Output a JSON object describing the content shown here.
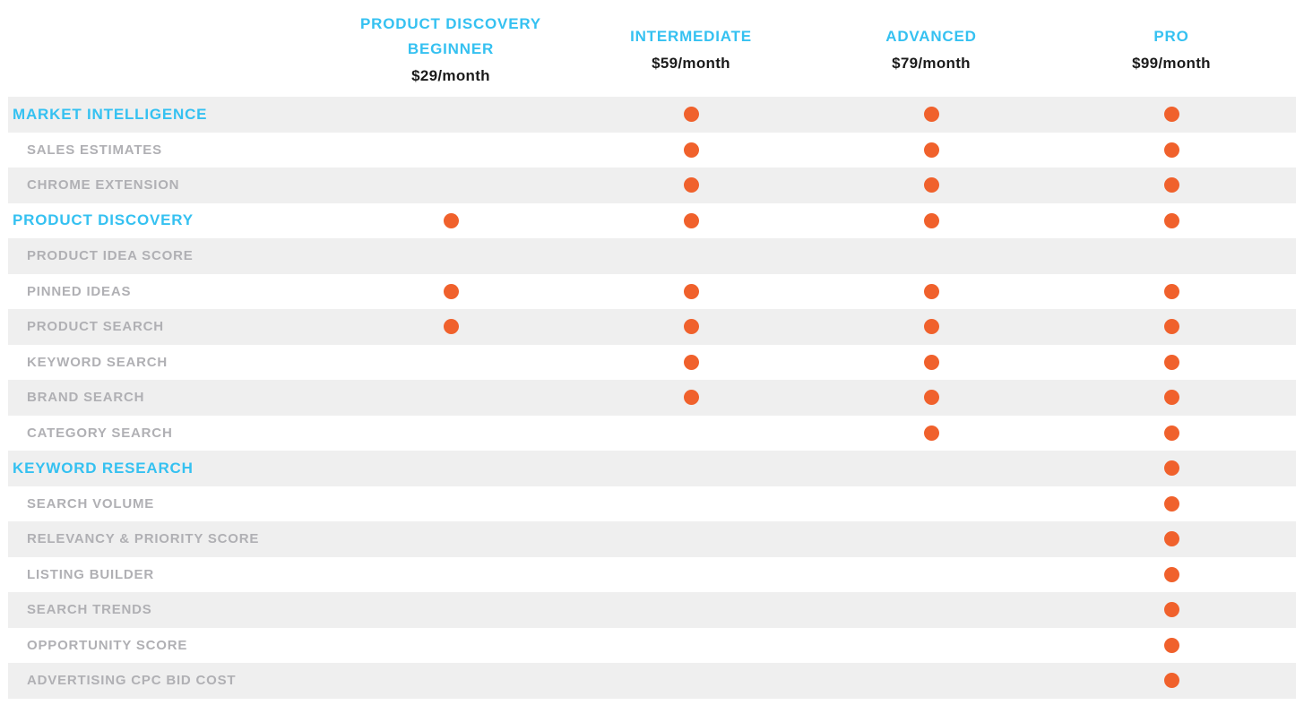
{
  "colors": {
    "plan_blue": "#35C1F1",
    "dot_orange": "#F0612C",
    "row_stripe": "#EFEFEF",
    "feature_gray": "#B0B0B4",
    "price_black": "#1B1B1B"
  },
  "plans": [
    {
      "name": "PRODUCT DISCOVERY BEGINNER",
      "price": "$29/month"
    },
    {
      "name": "INTERMEDIATE",
      "price": "$59/month"
    },
    {
      "name": "ADVANCED",
      "price": "$79/month"
    },
    {
      "name": "PRO",
      "price": "$99/month"
    }
  ],
  "rows": [
    {
      "label": "MARKET INTELLIGENCE",
      "type": "section",
      "included": [
        false,
        true,
        true,
        true
      ]
    },
    {
      "label": "SALES ESTIMATES",
      "type": "feature",
      "included": [
        false,
        true,
        true,
        true
      ]
    },
    {
      "label": "CHROME EXTENSION",
      "type": "feature",
      "included": [
        false,
        true,
        true,
        true
      ]
    },
    {
      "label": "PRODUCT DISCOVERY",
      "type": "section",
      "included": [
        true,
        true,
        true,
        true
      ]
    },
    {
      "label": "PRODUCT IDEA SCORE",
      "type": "feature",
      "included": [
        false,
        false,
        false,
        false
      ]
    },
    {
      "label": "PINNED IDEAS",
      "type": "feature",
      "included": [
        true,
        true,
        true,
        true
      ]
    },
    {
      "label": "PRODUCT SEARCH",
      "type": "feature",
      "included": [
        true,
        true,
        true,
        true
      ]
    },
    {
      "label": "KEYWORD SEARCH",
      "type": "feature",
      "included": [
        false,
        true,
        true,
        true
      ]
    },
    {
      "label": "BRAND SEARCH",
      "type": "feature",
      "included": [
        false,
        true,
        true,
        true
      ]
    },
    {
      "label": "CATEGORY SEARCH",
      "type": "feature",
      "included": [
        false,
        false,
        true,
        true
      ]
    },
    {
      "label": "KEYWORD RESEARCH",
      "type": "section",
      "included": [
        false,
        false,
        false,
        true
      ]
    },
    {
      "label": "SEARCH VOLUME",
      "type": "feature",
      "included": [
        false,
        false,
        false,
        true
      ]
    },
    {
      "label": "RELEVANCY & PRIORITY SCORE",
      "type": "feature",
      "included": [
        false,
        false,
        false,
        true
      ]
    },
    {
      "label": "LISTING BUILDER",
      "type": "feature",
      "included": [
        false,
        false,
        false,
        true
      ]
    },
    {
      "label": "SEARCH TRENDS",
      "type": "feature",
      "included": [
        false,
        false,
        false,
        true
      ]
    },
    {
      "label": "OPPORTUNITY SCORE",
      "type": "feature",
      "included": [
        false,
        false,
        false,
        true
      ]
    },
    {
      "label": "ADVERTISING CPC BID COST",
      "type": "feature",
      "included": [
        false,
        false,
        false,
        true
      ]
    }
  ]
}
